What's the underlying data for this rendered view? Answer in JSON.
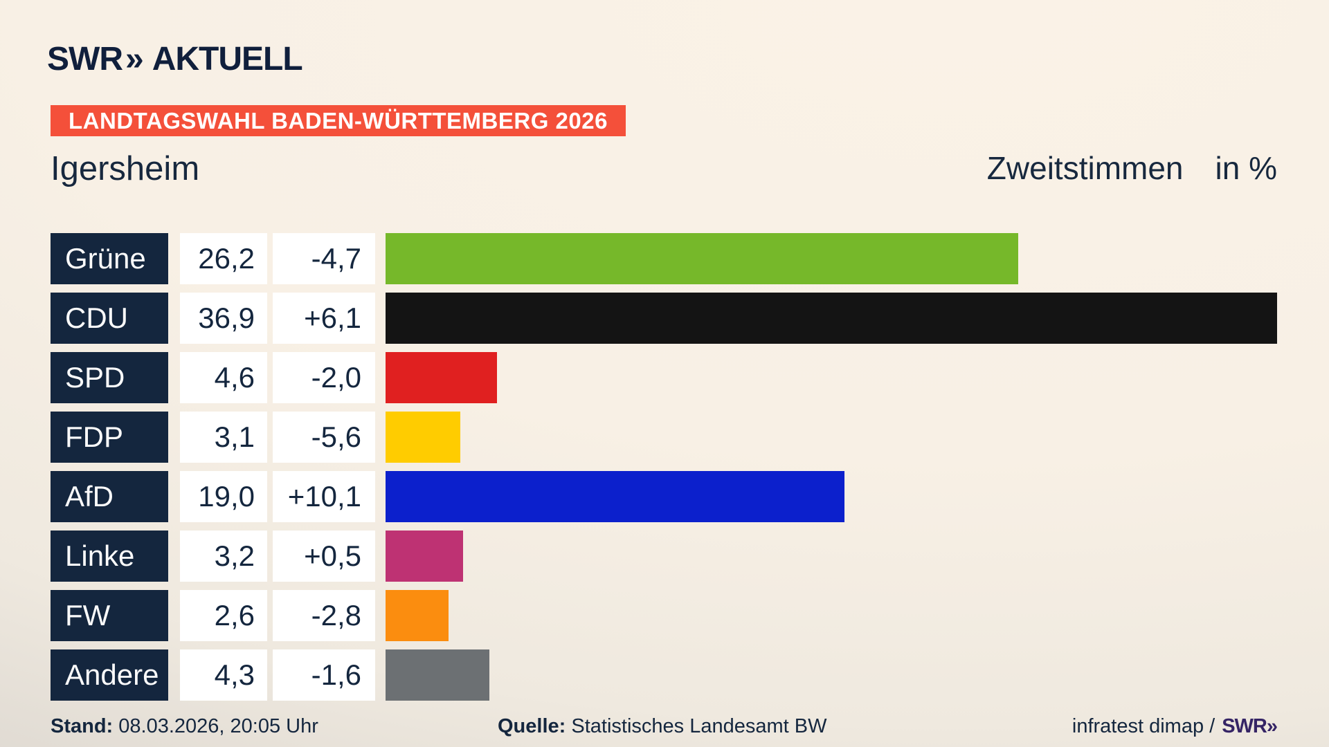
{
  "header": {
    "brand_swr": "SWR",
    "brand_chevrons": "»",
    "brand_aktuell": "AKTUELL",
    "badge": "LANDTAGSWAHL BADEN-WÜRTTEMBERG 2026"
  },
  "title": {
    "municipality": "Igersheim",
    "measure": "Zweitstimmen",
    "unit": "in %"
  },
  "chart_data": {
    "type": "bar",
    "orientation": "horizontal",
    "title": "Landtagswahl Baden-Württemberg 2026 — Igersheim, Zweitstimmen in %",
    "xlabel": "Zweitstimmen in %",
    "xlim": [
      0,
      39.05
    ],
    "grid": false,
    "legend": false,
    "categories": [
      "Grüne",
      "CDU",
      "SPD",
      "FDP",
      "AfD",
      "Linke",
      "FW",
      "Andere"
    ],
    "series": [
      {
        "party": "Grüne",
        "value": 26.2,
        "value_label": "26,2",
        "change": -4.7,
        "change_label": "-4,7",
        "color": "#76b82a"
      },
      {
        "party": "CDU",
        "value": 36.9,
        "value_label": "36,9",
        "change": 6.1,
        "change_label": "+6,1",
        "color": "#141414"
      },
      {
        "party": "SPD",
        "value": 4.6,
        "value_label": "4,6",
        "change": -2.0,
        "change_label": "-2,0",
        "color": "#e02020"
      },
      {
        "party": "FDP",
        "value": 3.1,
        "value_label": "3,1",
        "change": -5.6,
        "change_label": "-5,6",
        "color": "#ffcc00"
      },
      {
        "party": "AfD",
        "value": 19.0,
        "value_label": "19,0",
        "change": 10.1,
        "change_label": "+10,1",
        "color": "#0c20cc"
      },
      {
        "party": "Linke",
        "value": 3.2,
        "value_label": "3,2",
        "change": 0.5,
        "change_label": "+0,5",
        "color": "#be3273"
      },
      {
        "party": "FW",
        "value": 2.6,
        "value_label": "2,6",
        "change": -2.8,
        "change_label": "-2,8",
        "color": "#fb8d0f"
      },
      {
        "party": "Andere",
        "value": 4.3,
        "value_label": "4,3",
        "change": -1.6,
        "change_label": "-1,6",
        "color": "#6c7073"
      }
    ],
    "colors": {
      "label_box": "#14263e",
      "value_box": "#ffffff",
      "badge": "#f4503a",
      "text": "#14263e"
    }
  },
  "footer": {
    "stand_label": "Stand:",
    "stand_value": "08.03.2026, 20:05 Uhr",
    "quelle_label": "Quelle:",
    "quelle_value": "Statistisches Landesamt BW",
    "credit_text": "infratest dimap /",
    "credit_brand": "SWR»"
  }
}
